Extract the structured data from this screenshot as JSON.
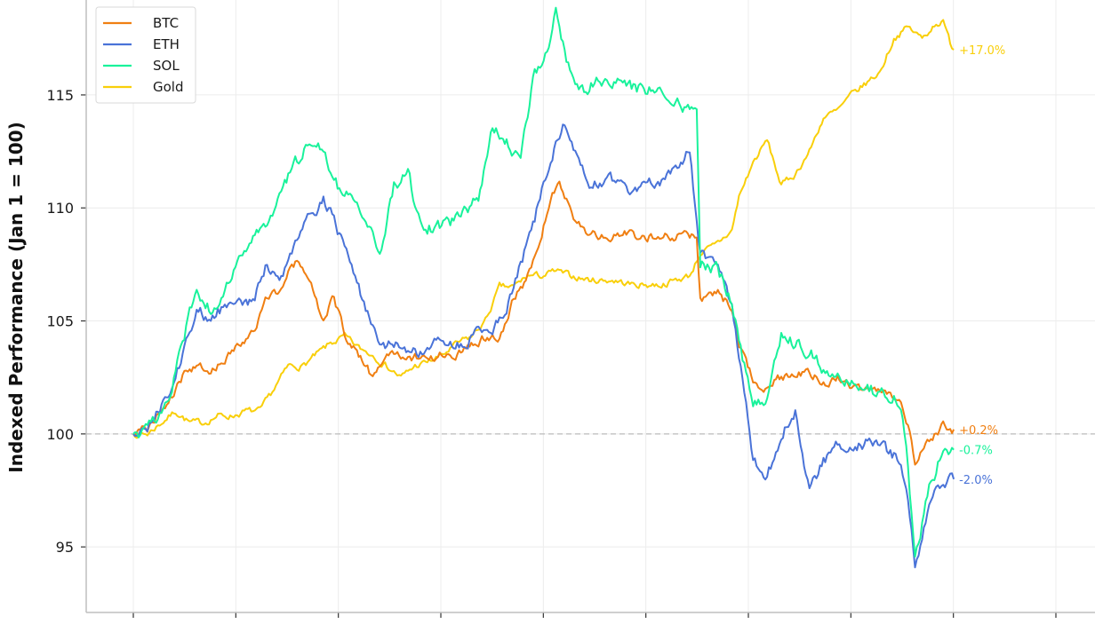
{
  "chart_data": {
    "type": "line",
    "title": "",
    "xlabel": "",
    "ylabel": "Indexed Performance (Jan 1 = 100)",
    "x_range": [
      0,
      262
    ],
    "ylim": [
      92.1,
      119.2
    ],
    "yticks": [
      95,
      100,
      105,
      110,
      115
    ],
    "x_tick_count": 10,
    "grid": true,
    "baseline": 100,
    "legend_position": "top-left",
    "series": [
      {
        "name": "BTC",
        "color": "#f07f12",
        "end_label": "+0.2%",
        "keypoints": [
          [
            0,
            100
          ],
          [
            4,
            100.2
          ],
          [
            10,
            101.5
          ],
          [
            14,
            102.5
          ],
          [
            18,
            103
          ],
          [
            22,
            102.7
          ],
          [
            26,
            103.3
          ],
          [
            30,
            104
          ],
          [
            34,
            104.5
          ],
          [
            38,
            106
          ],
          [
            42,
            106.5
          ],
          [
            46,
            107.6
          ],
          [
            50,
            106.8
          ],
          [
            54,
            105
          ],
          [
            57,
            106
          ],
          [
            60,
            104.5
          ],
          [
            64,
            103.5
          ],
          [
            68,
            102.5
          ],
          [
            72,
            103.5
          ],
          [
            76,
            103.5
          ],
          [
            80,
            103.4
          ],
          [
            84,
            103.3
          ],
          [
            88,
            103.5
          ],
          [
            92,
            103.6
          ],
          [
            96,
            104
          ],
          [
            100,
            104.3
          ],
          [
            104,
            104.3
          ],
          [
            108,
            106
          ],
          [
            112,
            107
          ],
          [
            115,
            108.5
          ],
          [
            118,
            110
          ],
          [
            121,
            111.3
          ],
          [
            125,
            109.5
          ],
          [
            129,
            109
          ],
          [
            133,
            108.7
          ],
          [
            138,
            108.9
          ],
          [
            143,
            108.7
          ],
          [
            150,
            108.8
          ],
          [
            160,
            108.7
          ],
          [
            161,
            106
          ],
          [
            166,
            106.3
          ],
          [
            170,
            105.5
          ],
          [
            172,
            103.8
          ],
          [
            176,
            102.4
          ],
          [
            180,
            102
          ],
          [
            184,
            102.5
          ],
          [
            188,
            102.5
          ],
          [
            192,
            102.8
          ],
          [
            196,
            102.2
          ],
          [
            200,
            102.6
          ],
          [
            204,
            102.2
          ],
          [
            208,
            102
          ],
          [
            212,
            101.8
          ],
          [
            218,
            101.5
          ],
          [
            220,
            100.5
          ],
          [
            222,
            98.8
          ],
          [
            226,
            99.8
          ],
          [
            230,
            100.4
          ],
          [
            233,
            100.2
          ]
        ]
      },
      {
        "name": "ETH",
        "color": "#4a73d8",
        "end_label": "-2.0%",
        "keypoints": [
          [
            0,
            100
          ],
          [
            4,
            100.3
          ],
          [
            10,
            101.8
          ],
          [
            14,
            103.5
          ],
          [
            18,
            105.5
          ],
          [
            22,
            105
          ],
          [
            26,
            105.7
          ],
          [
            30,
            106
          ],
          [
            34,
            105.8
          ],
          [
            38,
            107.5
          ],
          [
            42,
            107
          ],
          [
            46,
            108.6
          ],
          [
            50,
            109.5
          ],
          [
            54,
            110.5
          ],
          [
            58,
            109
          ],
          [
            62,
            107.5
          ],
          [
            66,
            105.5
          ],
          [
            70,
            103.8
          ],
          [
            74,
            104
          ],
          [
            78,
            103.5
          ],
          [
            82,
            103.7
          ],
          [
            86,
            104
          ],
          [
            90,
            104
          ],
          [
            94,
            104
          ],
          [
            98,
            104.5
          ],
          [
            102,
            104.5
          ],
          [
            106,
            105.5
          ],
          [
            110,
            107.5
          ],
          [
            114,
            109.5
          ],
          [
            118,
            112
          ],
          [
            122,
            113.5
          ],
          [
            126,
            112.5
          ],
          [
            130,
            111
          ],
          [
            136,
            111.2
          ],
          [
            142,
            110.8
          ],
          [
            150,
            111.2
          ],
          [
            158,
            112.5
          ],
          [
            161,
            108
          ],
          [
            166,
            107.5
          ],
          [
            170,
            105.5
          ],
          [
            172,
            103.5
          ],
          [
            176,
            99
          ],
          [
            180,
            98
          ],
          [
            184,
            100
          ],
          [
            188,
            101
          ],
          [
            190,
            99
          ],
          [
            192,
            97.5
          ],
          [
            196,
            98.8
          ],
          [
            200,
            99.5
          ],
          [
            204,
            99.4
          ],
          [
            208,
            99.6
          ],
          [
            212,
            99.5
          ],
          [
            218,
            98.8
          ],
          [
            220,
            97
          ],
          [
            222,
            94
          ],
          [
            226,
            97
          ],
          [
            230,
            98
          ],
          [
            233,
            98
          ]
        ]
      },
      {
        "name": "SOL",
        "color": "#19f29b",
        "end_label": "-0.7%",
        "keypoints": [
          [
            0,
            100
          ],
          [
            4,
            100.1
          ],
          [
            10,
            101.5
          ],
          [
            14,
            104
          ],
          [
            18,
            106.5
          ],
          [
            22,
            105.5
          ],
          [
            26,
            106.5
          ],
          [
            30,
            107.5
          ],
          [
            34,
            108.5
          ],
          [
            38,
            109.5
          ],
          [
            42,
            110.5
          ],
          [
            46,
            112
          ],
          [
            50,
            113
          ],
          [
            54,
            112.5
          ],
          [
            58,
            111
          ],
          [
            62,
            110.7
          ],
          [
            66,
            109.5
          ],
          [
            70,
            108
          ],
          [
            74,
            111
          ],
          [
            78,
            111.5
          ],
          [
            82,
            109
          ],
          [
            86,
            109.2
          ],
          [
            90,
            109.3
          ],
          [
            94,
            109.8
          ],
          [
            98,
            110.5
          ],
          [
            102,
            113.5
          ],
          [
            106,
            113
          ],
          [
            110,
            112
          ],
          [
            114,
            116
          ],
          [
            118,
            117
          ],
          [
            120,
            118.5
          ],
          [
            124,
            116
          ],
          [
            128,
            115
          ],
          [
            132,
            115.8
          ],
          [
            136,
            115.7
          ],
          [
            142,
            115.3
          ],
          [
            148,
            115.3
          ],
          [
            156,
            114.5
          ],
          [
            160,
            114.3
          ],
          [
            161,
            107.5
          ],
          [
            166,
            107.3
          ],
          [
            170,
            105.8
          ],
          [
            172,
            104
          ],
          [
            176,
            101.3
          ],
          [
            180,
            101.5
          ],
          [
            184,
            104.5
          ],
          [
            188,
            104
          ],
          [
            192,
            103.7
          ],
          [
            196,
            102.8
          ],
          [
            200,
            102.5
          ],
          [
            204,
            102.2
          ],
          [
            208,
            102
          ],
          [
            212,
            101.8
          ],
          [
            218,
            101.5
          ],
          [
            220,
            98.5
          ],
          [
            222,
            94.5
          ],
          [
            226,
            97.5
          ],
          [
            230,
            99.3
          ],
          [
            233,
            99.3
          ]
        ]
      },
      {
        "name": "Gold",
        "color": "#f9cf0a",
        "end_label": "+17.0%",
        "keypoints": [
          [
            0,
            100
          ],
          [
            4,
            100
          ],
          [
            8,
            100.5
          ],
          [
            12,
            101
          ],
          [
            16,
            100.5
          ],
          [
            20,
            100.5
          ],
          [
            24,
            100.8
          ],
          [
            28,
            100.8
          ],
          [
            32,
            101
          ],
          [
            36,
            101
          ],
          [
            40,
            102
          ],
          [
            44,
            103
          ],
          [
            48,
            103
          ],
          [
            52,
            103.5
          ],
          [
            56,
            104
          ],
          [
            60,
            104.3
          ],
          [
            64,
            103.8
          ],
          [
            68,
            103.5
          ],
          [
            72,
            103
          ],
          [
            76,
            102.5
          ],
          [
            80,
            103
          ],
          [
            84,
            103.2
          ],
          [
            88,
            103.5
          ],
          [
            92,
            104
          ],
          [
            96,
            104.3
          ],
          [
            100,
            105
          ],
          [
            104,
            106.5
          ],
          [
            108,
            106.5
          ],
          [
            112,
            107
          ],
          [
            116,
            107
          ],
          [
            120,
            107.2
          ],
          [
            124,
            107
          ],
          [
            130,
            106.8
          ],
          [
            136,
            106.8
          ],
          [
            142,
            106.6
          ],
          [
            150,
            106.6
          ],
          [
            158,
            107
          ],
          [
            161,
            108
          ],
          [
            165,
            108.3
          ],
          [
            170,
            109
          ],
          [
            172,
            110.5
          ],
          [
            176,
            112
          ],
          [
            180,
            113
          ],
          [
            184,
            111
          ],
          [
            188,
            111.5
          ],
          [
            192,
            112.5
          ],
          [
            196,
            114
          ],
          [
            200,
            114.3
          ],
          [
            204,
            115
          ],
          [
            208,
            115.5
          ],
          [
            212,
            116
          ],
          [
            216,
            117.5
          ],
          [
            220,
            118
          ],
          [
            224,
            117.5
          ],
          [
            228,
            118.2
          ],
          [
            230,
            118.2
          ],
          [
            232,
            117.3
          ],
          [
            233,
            117
          ]
        ]
      }
    ]
  }
}
